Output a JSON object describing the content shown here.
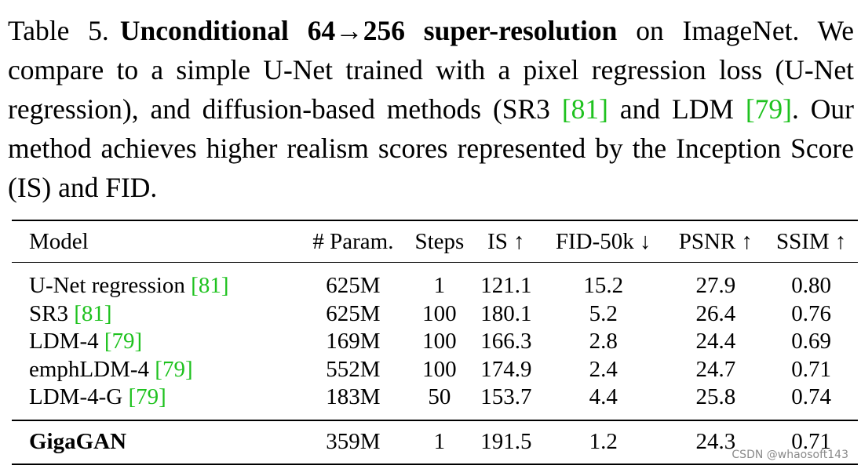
{
  "caption": {
    "label": "Table 5.",
    "title_bold": "Unconditional 64→256 super-resolution",
    "text_1": " on ImageNet. We compare to a simple U-Net trained with a pixel regression loss (U-Net regression), and diffusion-based methods (SR3 ",
    "cite_1": "[81]",
    "text_2": " and LDM ",
    "cite_2": "[79]",
    "text_3": ". Our method achieves higher realism scores represented by the Inception Score (IS) and FID."
  },
  "table": {
    "headers": [
      "Model",
      "# Param.",
      "Steps",
      "IS ↑",
      "FID-50k ↓",
      "PSNR ↑",
      "SSIM ↑"
    ],
    "rows": [
      {
        "model": "U-Net regression ",
        "cite": "[81]",
        "params": "625M",
        "steps": "1",
        "is": "121.1",
        "fid": "15.2",
        "psnr": "27.9",
        "ssim": "0.80"
      },
      {
        "model": "SR3 ",
        "cite": "[81]",
        "params": "625M",
        "steps": "100",
        "is": "180.1",
        "fid": "5.2",
        "psnr": "26.4",
        "ssim": "0.76"
      },
      {
        "model": "LDM-4 ",
        "cite": "[79]",
        "params": "169M",
        "steps": "100",
        "is": "166.3",
        "fid": "2.8",
        "psnr": "24.4",
        "ssim": "0.69"
      },
      {
        "model": "emphLDM-4 ",
        "cite": "[79]",
        "params": "552M",
        "steps": "100",
        "is": "174.9",
        "fid": "2.4",
        "psnr": "24.7",
        "ssim": "0.71"
      },
      {
        "model": "LDM-4-G ",
        "cite": "[79]",
        "params": "183M",
        "steps": "50",
        "is": "153.7",
        "fid": "4.4",
        "psnr": "25.8",
        "ssim": "0.74"
      }
    ],
    "ours": {
      "model": "GigaGAN",
      "params": "359M",
      "steps": "1",
      "is": "191.5",
      "fid": "1.2",
      "psnr": "24.3",
      "ssim": "0.71"
    }
  },
  "watermark": "CSDN @whaosoft143",
  "colors": {
    "citation": "#1fc21f",
    "text": "#000000",
    "watermark": "#8a8a8a"
  }
}
